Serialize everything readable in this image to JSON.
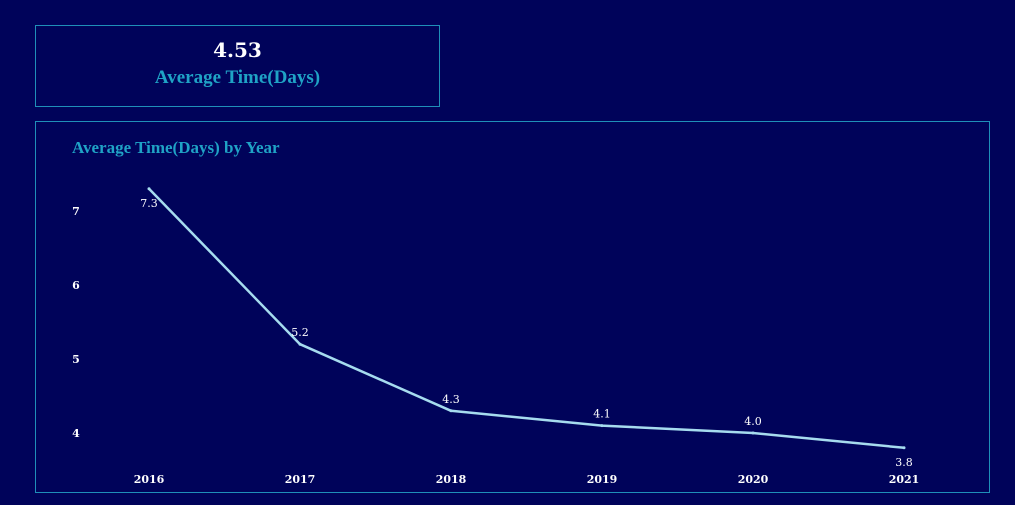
{
  "kpi": {
    "value": "4.53",
    "label": "Average Time(Days)"
  },
  "colors": {
    "background": "#00035a",
    "border": "#1f8fb8",
    "accent": "#1fa3c6",
    "line": "#a6dcef",
    "text": "#ffffff"
  },
  "chart_data": {
    "type": "line",
    "title": "Average Time(Days) by Year",
    "xlabel": "",
    "ylabel": "",
    "categories": [
      "2016",
      "2017",
      "2018",
      "2019",
      "2020",
      "2021"
    ],
    "values": [
      7.3,
      5.2,
      4.3,
      4.1,
      4.0,
      3.8
    ],
    "data_labels": [
      "7.3",
      "5.2",
      "4.3",
      "4.1",
      "4.0",
      "3.8"
    ],
    "y_ticks": [
      4,
      5,
      6,
      7
    ],
    "y_tick_labels": [
      "4",
      "5",
      "6",
      "7"
    ],
    "grid": false,
    "legend": "none"
  }
}
